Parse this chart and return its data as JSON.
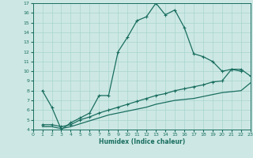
{
  "xlabel": "Humidex (Indice chaleur)",
  "bg_color": "#cde8e4",
  "grid_color": "#a8d4ce",
  "line_color": "#1a6e60",
  "xlim": [
    0,
    23
  ],
  "ylim": [
    4,
    17
  ],
  "xticks": [
    0,
    1,
    2,
    3,
    4,
    5,
    6,
    7,
    8,
    9,
    10,
    11,
    12,
    13,
    14,
    15,
    16,
    17,
    18,
    19,
    20,
    21,
    22,
    23
  ],
  "yticks": [
    4,
    5,
    6,
    7,
    8,
    9,
    10,
    11,
    12,
    13,
    14,
    15,
    16,
    17
  ],
  "series1_x": [
    1,
    2,
    3,
    4,
    5,
    6,
    7,
    8,
    9,
    10,
    11,
    12,
    13,
    14,
    15,
    16,
    17,
    18,
    19,
    20,
    21,
    22
  ],
  "series1_y": [
    8.0,
    6.3,
    4.0,
    4.7,
    5.2,
    5.7,
    7.5,
    7.5,
    12.0,
    13.5,
    15.2,
    15.6,
    17.0,
    15.8,
    16.3,
    14.5,
    11.8,
    11.5,
    11.0,
    10.0,
    10.2,
    10.0
  ],
  "series2_x": [
    1,
    2,
    3,
    4,
    5,
    6,
    7,
    8,
    9,
    10,
    11,
    12,
    13,
    14,
    15,
    16,
    17,
    18,
    19,
    20,
    21,
    22,
    23
  ],
  "series2_y": [
    4.5,
    4.5,
    4.3,
    4.5,
    5.0,
    5.3,
    5.7,
    6.0,
    6.3,
    6.6,
    6.9,
    7.2,
    7.5,
    7.7,
    8.0,
    8.2,
    8.4,
    8.6,
    8.9,
    9.0,
    10.2,
    10.2,
    9.5
  ],
  "series3_x": [
    1,
    2,
    3,
    4,
    5,
    6,
    7,
    8,
    9,
    10,
    11,
    12,
    13,
    14,
    15,
    16,
    17,
    18,
    19,
    20,
    21,
    22,
    23
  ],
  "series3_y": [
    4.3,
    4.3,
    4.1,
    4.3,
    4.6,
    4.9,
    5.2,
    5.5,
    5.7,
    5.9,
    6.1,
    6.3,
    6.6,
    6.8,
    7.0,
    7.1,
    7.2,
    7.4,
    7.6,
    7.8,
    7.9,
    8.0,
    8.8
  ]
}
